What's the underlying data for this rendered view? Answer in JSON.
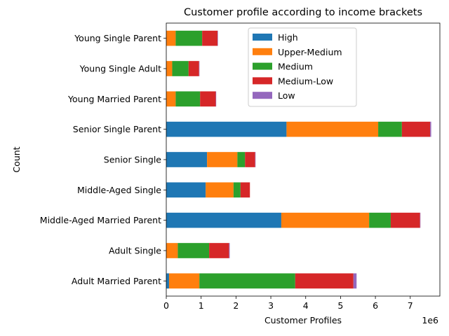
{
  "chart_data": {
    "type": "bar",
    "orientation": "horizontal",
    "stacked": true,
    "title": "Customer profile according to income brackets",
    "xlabel": "Customer Profiles",
    "ylabel": "Count",
    "x_offset_label": "1e6",
    "xlim": [
      0,
      7.85
    ],
    "xticks": [
      0,
      1,
      2,
      3,
      4,
      5,
      6,
      7
    ],
    "grid": false,
    "legend_position": "top-center",
    "categories": [
      "Adult Married Parent",
      "Adult Single",
      "Middle-Aged Married Parent",
      "Middle-Aged Single",
      "Senior Single",
      "Senior Single Parent",
      "Young Married Parent",
      "Young Single Adult",
      "Young Single Parent"
    ],
    "series": [
      {
        "name": "High",
        "color": "#1f77b4",
        "values": [
          0.08,
          0.0,
          3.3,
          1.13,
          1.17,
          3.45,
          0.0,
          0.0,
          0.0
        ]
      },
      {
        "name": "Upper-Medium",
        "color": "#ff7f0e",
        "values": [
          0.87,
          0.33,
          2.52,
          0.8,
          0.87,
          2.63,
          0.27,
          0.17,
          0.27
        ]
      },
      {
        "name": "Medium",
        "color": "#2ca02c",
        "values": [
          2.75,
          0.9,
          0.62,
          0.2,
          0.22,
          0.68,
          0.7,
          0.47,
          0.76
        ]
      },
      {
        "name": "Medium-Low",
        "color": "#d62728",
        "values": [
          1.67,
          0.57,
          0.84,
          0.27,
          0.29,
          0.81,
          0.45,
          0.3,
          0.44
        ]
      },
      {
        "name": "Low",
        "color": "#9467bd",
        "values": [
          0.09,
          0.02,
          0.01,
          0.0,
          0.01,
          0.03,
          0.01,
          0.01,
          0.01
        ]
      }
    ]
  }
}
